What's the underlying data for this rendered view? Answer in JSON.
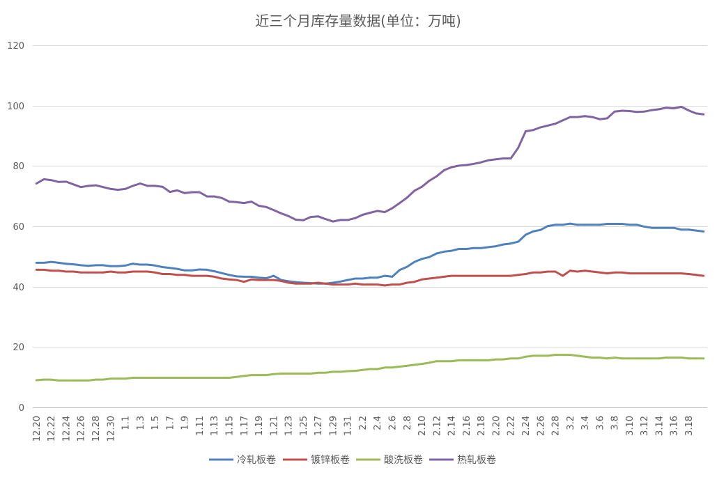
{
  "chart_data": {
    "type": "line",
    "title": "近三个月库存量数据(单位：万吨)",
    "ylim": [
      0,
      120
    ],
    "y_ticks": [
      0,
      20,
      40,
      60,
      80,
      100,
      120
    ],
    "grid": true,
    "legend_position": "bottom",
    "x_tick_labels": [
      "12.20",
      "12.22",
      "12.24",
      "12.26",
      "12.28",
      "12.30",
      "1.1",
      "1.3",
      "1.5",
      "1.7",
      "1.9",
      "1.11",
      "1.13",
      "1.15",
      "1.17",
      "1.19",
      "1.21",
      "1.23",
      "1.25",
      "1.27",
      "1.29",
      "1.31",
      "2.2",
      "2.4",
      "2.6",
      "2.8",
      "2.10",
      "2.12",
      "2.14",
      "2.16",
      "2.18",
      "2.20",
      "2.22",
      "2.24",
      "2.26",
      "2.28",
      "3.2",
      "3.4",
      "3.6",
      "3.8",
      "3.10",
      "3.12",
      "3.14",
      "3.16",
      "3.18"
    ],
    "series": [
      {
        "name": "冷轧板卷",
        "color": "#4F81BD",
        "values": [
          47.9,
          47.9,
          48.2,
          47.9,
          47.6,
          47.4,
          47.1,
          46.9,
          47.1,
          47.1,
          46.8,
          46.8,
          47.0,
          47.6,
          47.3,
          47.3,
          47.0,
          46.5,
          46.2,
          45.9,
          45.4,
          45.4,
          45.7,
          45.6,
          45.1,
          44.5,
          43.9,
          43.4,
          43.3,
          43.3,
          43.0,
          42.8,
          43.6,
          42.2,
          41.8,
          41.5,
          41.3,
          41.2,
          41.0,
          41.0,
          41.3,
          41.7,
          42.2,
          42.7,
          42.7,
          43.0,
          43.0,
          43.6,
          43.3,
          45.5,
          46.6,
          48.2,
          49.2,
          49.8,
          51.0,
          51.6,
          51.9,
          52.5,
          52.5,
          52.8,
          52.8,
          53.1,
          53.4,
          54.0,
          54.3,
          54.9,
          57.2,
          58.3,
          58.8,
          60.1,
          60.5,
          60.5,
          60.9,
          60.5,
          60.5,
          60.5,
          60.5,
          60.8,
          60.8,
          60.8,
          60.5,
          60.5,
          59.9,
          59.5,
          59.5,
          59.5,
          59.5,
          58.9,
          58.9,
          58.6,
          58.3
        ]
      },
      {
        "name": "镀锌板卷",
        "color": "#C0504D",
        "values": [
          45.6,
          45.6,
          45.3,
          45.3,
          45.0,
          45.0,
          44.7,
          44.7,
          44.7,
          44.7,
          45.0,
          44.7,
          44.7,
          45.0,
          45.0,
          45.0,
          44.7,
          44.2,
          44.2,
          43.9,
          43.9,
          43.6,
          43.6,
          43.6,
          43.3,
          42.7,
          42.4,
          42.2,
          41.6,
          42.4,
          42.2,
          42.2,
          42.2,
          41.9,
          41.3,
          41.0,
          41.0,
          41.0,
          41.3,
          41.0,
          40.7,
          40.7,
          40.7,
          41.0,
          40.7,
          40.7,
          40.7,
          40.4,
          40.7,
          40.7,
          41.3,
          41.6,
          42.4,
          42.7,
          43.0,
          43.3,
          43.6,
          43.6,
          43.6,
          43.6,
          43.6,
          43.6,
          43.6,
          43.6,
          43.6,
          43.9,
          44.2,
          44.7,
          44.7,
          45.0,
          45.0,
          43.6,
          45.3,
          45.0,
          45.3,
          45.0,
          44.7,
          44.4,
          44.7,
          44.7,
          44.4,
          44.4,
          44.4,
          44.4,
          44.4,
          44.4,
          44.4,
          44.4,
          44.2,
          43.9,
          43.6
        ]
      },
      {
        "name": "酸洗板卷",
        "color": "#9BBB59",
        "values": [
          9.0,
          9.2,
          9.2,
          8.9,
          8.9,
          8.9,
          8.9,
          8.9,
          9.2,
          9.2,
          9.5,
          9.5,
          9.5,
          9.8,
          9.8,
          9.8,
          9.8,
          9.8,
          9.8,
          9.8,
          9.8,
          9.8,
          9.8,
          9.8,
          9.8,
          9.8,
          9.8,
          10.1,
          10.4,
          10.7,
          10.7,
          10.7,
          11.0,
          11.2,
          11.2,
          11.2,
          11.2,
          11.2,
          11.5,
          11.5,
          11.8,
          11.8,
          12.0,
          12.1,
          12.4,
          12.7,
          12.7,
          13.2,
          13.2,
          13.5,
          13.8,
          14.1,
          14.4,
          14.8,
          15.3,
          15.3,
          15.3,
          15.6,
          15.6,
          15.6,
          15.6,
          15.6,
          15.9,
          15.9,
          16.2,
          16.2,
          16.8,
          17.1,
          17.1,
          17.1,
          17.4,
          17.4,
          17.4,
          17.1,
          16.8,
          16.5,
          16.5,
          16.2,
          16.5,
          16.2,
          16.2,
          16.2,
          16.2,
          16.2,
          16.2,
          16.5,
          16.5,
          16.5,
          16.2,
          16.2,
          16.2
        ]
      },
      {
        "name": "热轧板卷",
        "color": "#8064A2",
        "values": [
          74.2,
          75.6,
          75.3,
          74.7,
          74.8,
          73.9,
          73.0,
          73.4,
          73.6,
          73.0,
          72.4,
          72.1,
          72.4,
          73.4,
          74.2,
          73.4,
          73.4,
          73.1,
          71.4,
          71.9,
          71.0,
          71.3,
          71.3,
          69.9,
          69.9,
          69.4,
          68.2,
          68.0,
          67.7,
          68.2,
          66.8,
          66.4,
          65.4,
          64.3,
          63.4,
          62.2,
          62.0,
          63.1,
          63.3,
          62.4,
          61.6,
          62.1,
          62.1,
          62.7,
          63.8,
          64.5,
          65.1,
          64.7,
          66.0,
          67.7,
          69.5,
          71.8,
          73.1,
          75.1,
          76.6,
          78.6,
          79.6,
          80.1,
          80.3,
          80.7,
          81.2,
          81.9,
          82.2,
          82.5,
          82.5,
          86.0,
          91.5,
          91.9,
          92.8,
          93.4,
          94.0,
          95.1,
          96.2,
          96.2,
          96.5,
          96.2,
          95.5,
          95.8,
          98.0,
          98.3,
          98.2,
          97.9,
          98.0,
          98.5,
          98.8,
          99.3,
          99.1,
          99.6,
          98.4,
          97.4,
          97.1
        ]
      }
    ]
  }
}
